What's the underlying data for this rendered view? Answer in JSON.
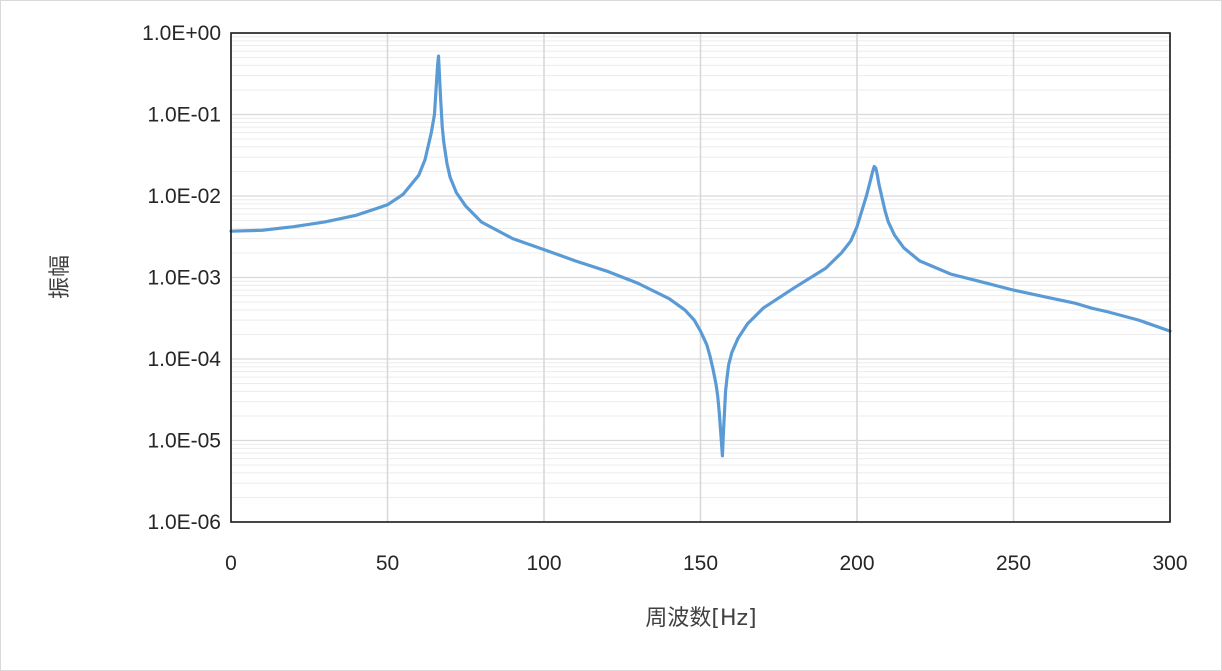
{
  "chart_data": {
    "type": "line",
    "title": "",
    "xlabel": "周波数[Hz]",
    "ylabel": "振幅",
    "xlim": [
      0,
      300
    ],
    "ylim": [
      1e-06,
      1
    ],
    "yscale": "log",
    "x_ticks": [
      0,
      50,
      100,
      150,
      200,
      250,
      300
    ],
    "x_tick_labels": [
      "0",
      "50",
      "100",
      "150",
      "200",
      "250",
      "300"
    ],
    "y_ticks": [
      1,
      0.1,
      0.01,
      0.001,
      0.0001,
      1e-05,
      1e-06
    ],
    "y_tick_labels": [
      "1.0E+00",
      "1.0E-01",
      "1.0E-02",
      "1.0E-03",
      "1.0E-04",
      "1.0E-05",
      "1.0E-06"
    ],
    "grid": true,
    "minor_grid": true,
    "legend": "none",
    "line_color": "#5B9BD5",
    "series": [
      {
        "x": [
          0,
          10,
          20,
          30,
          40,
          50,
          55,
          60,
          62,
          64,
          65,
          65.5,
          66,
          66.3,
          66.6,
          67,
          67.5,
          68,
          69,
          70,
          72,
          75,
          80,
          90,
          100,
          110,
          120,
          130,
          140,
          145,
          148,
          150,
          152,
          153,
          154,
          155,
          155.5,
          156,
          156.5,
          157,
          157.3,
          157.6,
          158,
          158.5,
          159,
          160,
          162,
          165,
          170,
          180,
          190,
          195,
          198,
          200,
          202,
          203,
          204,
          205,
          205.5,
          206,
          206.5,
          207,
          208,
          209,
          210,
          212,
          215,
          220,
          230,
          240,
          250,
          260,
          270,
          275,
          280,
          290,
          300
        ],
        "y": [
          0.0037,
          0.0038,
          0.0042,
          0.0048,
          0.0058,
          0.0078,
          0.0105,
          0.018,
          0.028,
          0.06,
          0.1,
          0.2,
          0.4,
          0.52,
          0.3,
          0.15,
          0.07,
          0.045,
          0.025,
          0.017,
          0.011,
          0.0075,
          0.0048,
          0.003,
          0.0022,
          0.0016,
          0.0012,
          0.00085,
          0.00055,
          0.0004,
          0.0003,
          0.00022,
          0.00015,
          0.00011,
          7.5e-05,
          4.8e-05,
          3.5e-05,
          2.2e-05,
          1.2e-05,
          6.5e-06,
          1.2e-05,
          2e-05,
          4e-05,
          6e-05,
          8.5e-05,
          0.00012,
          0.00018,
          0.00027,
          0.00042,
          0.00075,
          0.0013,
          0.002,
          0.0028,
          0.0042,
          0.0075,
          0.01,
          0.014,
          0.02,
          0.023,
          0.022,
          0.018,
          0.014,
          0.0095,
          0.0065,
          0.0048,
          0.0033,
          0.0023,
          0.0016,
          0.0011,
          0.00088,
          0.0007,
          0.00058,
          0.00048,
          0.00042,
          0.00038,
          0.0003,
          0.00022
        ]
      }
    ]
  }
}
